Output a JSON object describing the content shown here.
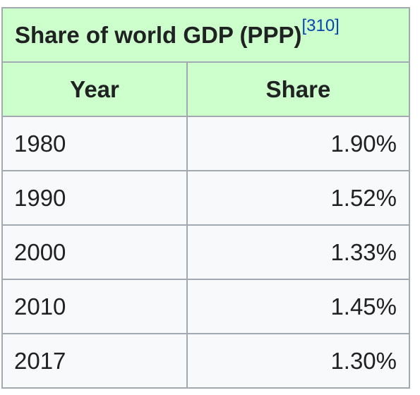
{
  "table": {
    "caption": "Share of world GDP (PPP)",
    "reference": "[310]",
    "headers": [
      "Year",
      "Share"
    ],
    "rows": [
      {
        "year": "1980",
        "share": "1.90%"
      },
      {
        "year": "1990",
        "share": "1.52%"
      },
      {
        "year": "2000",
        "share": "1.33%"
      },
      {
        "year": "2010",
        "share": "1.45%"
      },
      {
        "year": "2017",
        "share": "1.30%"
      }
    ]
  },
  "colors": {
    "header_background": "#ccffcc",
    "cell_background": "#f8f9fa",
    "border": "#a2a9b1",
    "text": "#202122",
    "link": "#0645ad"
  }
}
